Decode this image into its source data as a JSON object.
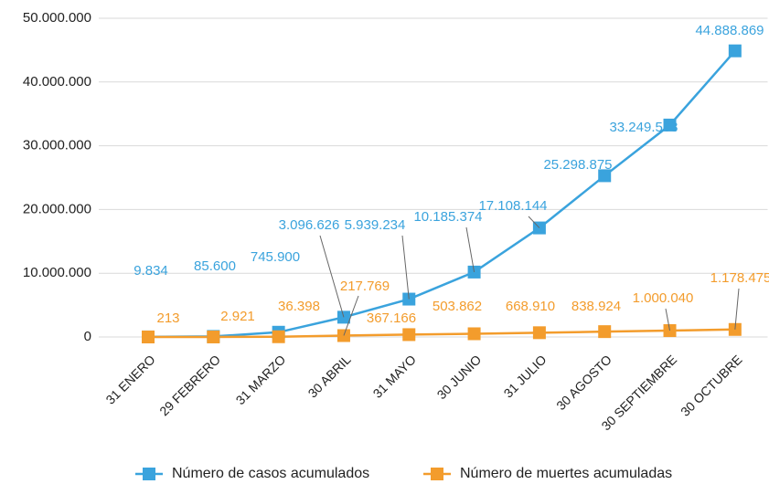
{
  "chart_data": {
    "type": "line",
    "categories": [
      "31 ENERO",
      "29 FEBRERO",
      "31 MARZO",
      "30 ABRIL",
      "31 MAYO",
      "30 JUNIO",
      "31 JULIO",
      "30 AGOSTO",
      "30 SEPTIEMBRE",
      "30 OCTUBRE"
    ],
    "series": [
      {
        "name": "Número de casos acumulados",
        "color": "#3aa3dd",
        "values": [
          9834,
          85600,
          745900,
          3096626,
          5939234,
          10185374,
          17108144,
          25298875,
          33249563,
          44888869
        ],
        "value_labels": [
          "9.834",
          "85.600",
          "745.900",
          "3.096.626",
          "5.939.234",
          "10.185.374",
          "17.108.144",
          "25.298.875",
          "33.249.563",
          "44.888.869"
        ]
      },
      {
        "name": "Número de muertes acumuladas",
        "color": "#f39c2c",
        "values": [
          213,
          2921,
          36398,
          217769,
          367166,
          503862,
          668910,
          838924,
          1000040,
          1178475
        ],
        "value_labels": [
          "213",
          "2.921",
          "36.398",
          "217.769",
          "367.166",
          "503.862",
          "668.910",
          "838.924",
          "1.000.040",
          "1.178.475"
        ]
      }
    ],
    "ylim": [
      0,
      50000000
    ],
    "yticks": [
      0,
      {
        "value": 10000000,
        "label": "10.000.000"
      },
      {
        "value": 20000000,
        "label": "20.000.000"
      },
      {
        "value": 30000000,
        "label": "30.000.000"
      },
      {
        "value": 40000000,
        "label": "40.000.000"
      },
      {
        "value": 50000000,
        "label": "50.000.000"
      }
    ],
    "grid": true,
    "legend": "bottom"
  }
}
